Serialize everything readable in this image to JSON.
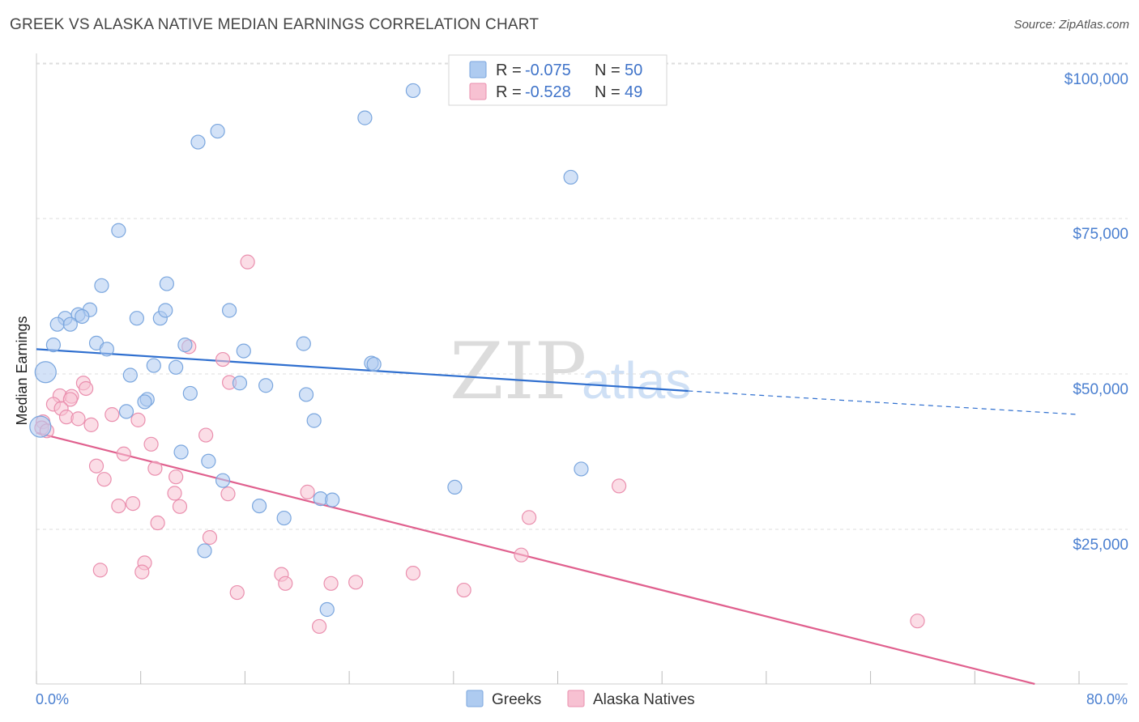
{
  "header": {
    "title": "GREEK VS ALASKA NATIVE MEDIAN EARNINGS CORRELATION CHART",
    "source": "Source: ZipAtlas.com"
  },
  "legend": {
    "greeks": {
      "r_label": "R =",
      "r_value": "-0.075",
      "n_label": "N =",
      "n_value": "50"
    },
    "alaska": {
      "r_label": "R =",
      "r_value": "-0.528",
      "n_label": "N =",
      "n_value": "49"
    }
  },
  "bottom_legend": {
    "greeks": "Greeks",
    "alaska": "Alaska Natives"
  },
  "watermark": {
    "zip": "ZIP",
    "atlas": "atlas"
  },
  "colors": {
    "greeks_fill": "#aecbf0",
    "greeks_stroke": "#7aa6de",
    "greeks_line": "#2f6fcf",
    "alaska_fill": "#f7c1d2",
    "alaska_stroke": "#ea8fae",
    "alaska_line": "#e0608e",
    "tick_text": "#4a7fd0",
    "grid": "#dddddd"
  },
  "chart_data": {
    "type": "scatter",
    "title": "GREEK VS ALASKA NATIVE MEDIAN EARNINGS CORRELATION CHART",
    "xlabel": "",
    "ylabel": "Median Earnings",
    "xlim": [
      0,
      80
    ],
    "ylim": [
      0,
      100000
    ],
    "x_tick_labels": [
      "0.0%",
      "80.0%"
    ],
    "y_ticks": [
      25000,
      50000,
      75000,
      100000
    ],
    "y_tick_labels": [
      "$25,000",
      "$50,000",
      "$75,000",
      "$100,000"
    ],
    "grid": true,
    "legend_placement": "top-center",
    "series": [
      {
        "name": "Greeks",
        "r": -0.075,
        "n": 50,
        "trend": {
          "x0": 0,
          "y0": 55300,
          "x1": 50,
          "y1": 48400,
          "dashed_to_x": 80,
          "dashed_y1": 44500
        },
        "points": [
          [
            28.9,
            98000
          ],
          [
            25.2,
            93500
          ],
          [
            13.9,
            91300
          ],
          [
            12.4,
            89500
          ],
          [
            41.0,
            83700
          ],
          [
            6.3,
            74900
          ],
          [
            10.0,
            66100
          ],
          [
            5.0,
            65800
          ],
          [
            4.1,
            61800
          ],
          [
            7.7,
            60400
          ],
          [
            9.5,
            60400
          ],
          [
            3.2,
            61000
          ],
          [
            2.2,
            60400
          ],
          [
            3.5,
            60700
          ],
          [
            1.6,
            59400
          ],
          [
            2.6,
            59400
          ],
          [
            9.9,
            61700
          ],
          [
            14.8,
            61700
          ],
          [
            1.3,
            56000
          ],
          [
            4.6,
            56300
          ],
          [
            5.4,
            55300
          ],
          [
            11.4,
            56000
          ],
          [
            15.9,
            55000
          ],
          [
            20.5,
            56200
          ],
          [
            0.7,
            51500
          ],
          [
            7.2,
            51000
          ],
          [
            9.0,
            52600
          ],
          [
            10.7,
            52300
          ],
          [
            25.7,
            53000
          ],
          [
            25.9,
            52800
          ],
          [
            15.6,
            49700
          ],
          [
            17.6,
            49300
          ],
          [
            11.8,
            48000
          ],
          [
            20.7,
            47800
          ],
          [
            8.5,
            47000
          ],
          [
            8.3,
            46600
          ],
          [
            6.9,
            45000
          ],
          [
            21.3,
            43500
          ],
          [
            0.3,
            42500
          ],
          [
            11.1,
            38300
          ],
          [
            13.2,
            36800
          ],
          [
            41.8,
            35500
          ],
          [
            14.3,
            33600
          ],
          [
            32.1,
            32500
          ],
          [
            21.8,
            30600
          ],
          [
            22.7,
            30400
          ],
          [
            17.1,
            29400
          ],
          [
            19.0,
            27400
          ],
          [
            12.9,
            22000
          ],
          [
            22.3,
            12300
          ]
        ]
      },
      {
        "name": "Alaska Natives",
        "r": -0.528,
        "n": 49,
        "trend": {
          "x0": 0,
          "y0": 41500,
          "x1": 76.6,
          "y1": 0
        },
        "points": [
          [
            16.2,
            69700
          ],
          [
            11.7,
            55700
          ],
          [
            14.3,
            53600
          ],
          [
            14.8,
            49800
          ],
          [
            3.6,
            49700
          ],
          [
            3.8,
            48800
          ],
          [
            1.8,
            47600
          ],
          [
            2.7,
            47500
          ],
          [
            2.6,
            47000
          ],
          [
            1.3,
            46200
          ],
          [
            1.9,
            45500
          ],
          [
            5.8,
            44500
          ],
          [
            2.3,
            44100
          ],
          [
            3.2,
            43800
          ],
          [
            7.8,
            43600
          ],
          [
            0.5,
            43300
          ],
          [
            4.2,
            42800
          ],
          [
            0.4,
            42300
          ],
          [
            0.8,
            41800
          ],
          [
            13.0,
            41100
          ],
          [
            8.8,
            39600
          ],
          [
            6.7,
            38000
          ],
          [
            4.6,
            36000
          ],
          [
            9.1,
            35600
          ],
          [
            10.7,
            34200
          ],
          [
            5.2,
            33800
          ],
          [
            44.7,
            32700
          ],
          [
            20.8,
            31700
          ],
          [
            10.6,
            31500
          ],
          [
            14.7,
            31400
          ],
          [
            7.4,
            29800
          ],
          [
            6.3,
            29400
          ],
          [
            11.0,
            29300
          ],
          [
            37.8,
            27500
          ],
          [
            9.3,
            26600
          ],
          [
            13.3,
            24200
          ],
          [
            37.2,
            21300
          ],
          [
            8.3,
            20000
          ],
          [
            4.9,
            18800
          ],
          [
            8.1,
            18500
          ],
          [
            28.9,
            18300
          ],
          [
            18.8,
            18100
          ],
          [
            19.1,
            16600
          ],
          [
            22.6,
            16600
          ],
          [
            24.5,
            16800
          ],
          [
            32.8,
            15500
          ],
          [
            15.4,
            15100
          ],
          [
            21.7,
            9500
          ],
          [
            67.6,
            10400
          ]
        ]
      }
    ]
  }
}
